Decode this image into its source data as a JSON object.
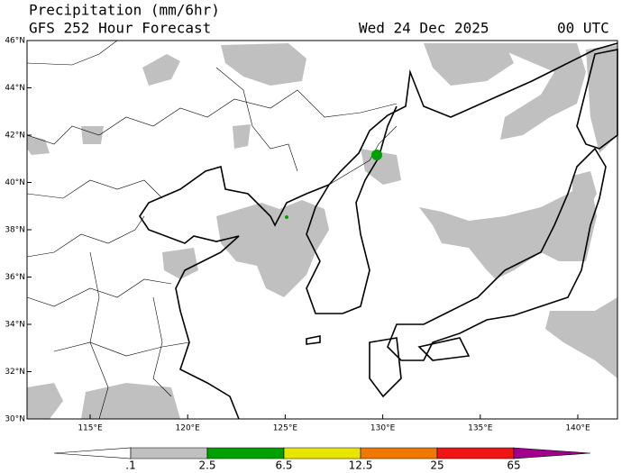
{
  "header": {
    "title": "Precipitation (mm/6hr)",
    "subtitle": "GFS 252 Hour Forecast",
    "date": "Wed 24 Dec 2025",
    "time": "00 UTC"
  },
  "map": {
    "lat_labels": [
      "46°N",
      "44°N",
      "42°N",
      "40°N",
      "38°N",
      "36°N",
      "34°N",
      "32°N",
      "30°N"
    ],
    "lon_labels": [
      "115°E",
      "120°E",
      "125°E",
      "130°E",
      "135°E",
      "140°E"
    ]
  },
  "colorbar": {
    "labels": [
      ".1",
      "2.5",
      "6.5",
      "12.5",
      "25",
      "65"
    ],
    "colors": [
      "#ffffff",
      "#c0c0c0",
      "#00a000",
      "#e6e600",
      "#f07800",
      "#f01414",
      "#a0008c"
    ]
  }
}
